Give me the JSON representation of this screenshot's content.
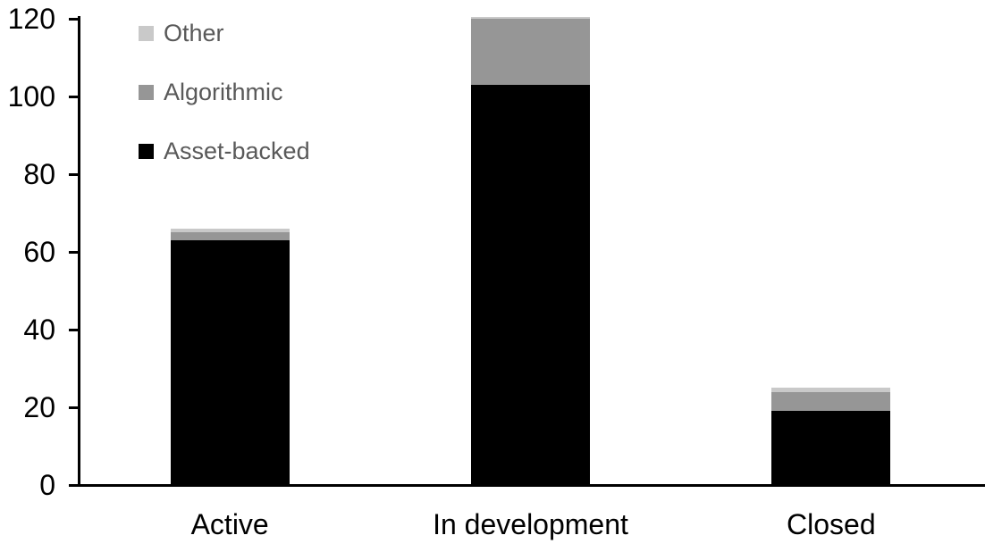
{
  "chart_data": {
    "type": "bar",
    "stacked": true,
    "title": "",
    "categories": [
      "Active",
      "In development",
      "Closed"
    ],
    "series": [
      {
        "name": "Asset-backed",
        "color": "#000000",
        "values": [
          63,
          103,
          19
        ]
      },
      {
        "name": "Algorithmic",
        "color": "#969696",
        "values": [
          2,
          17,
          5
        ]
      },
      {
        "name": "Other",
        "color": "#c9c9c9",
        "values": [
          1,
          0.5,
          1
        ]
      }
    ],
    "ylim": [
      0,
      120
    ],
    "yticks": [
      0,
      20,
      40,
      60,
      80,
      100,
      120
    ],
    "grid": false,
    "axis_color": "#000000",
    "category_label_color": "#000000",
    "tick_label_color": "#000000",
    "legend": {
      "position": "top-left",
      "text_color": "#595959",
      "order": [
        "Other",
        "Algorithmic",
        "Asset-backed"
      ]
    }
  }
}
